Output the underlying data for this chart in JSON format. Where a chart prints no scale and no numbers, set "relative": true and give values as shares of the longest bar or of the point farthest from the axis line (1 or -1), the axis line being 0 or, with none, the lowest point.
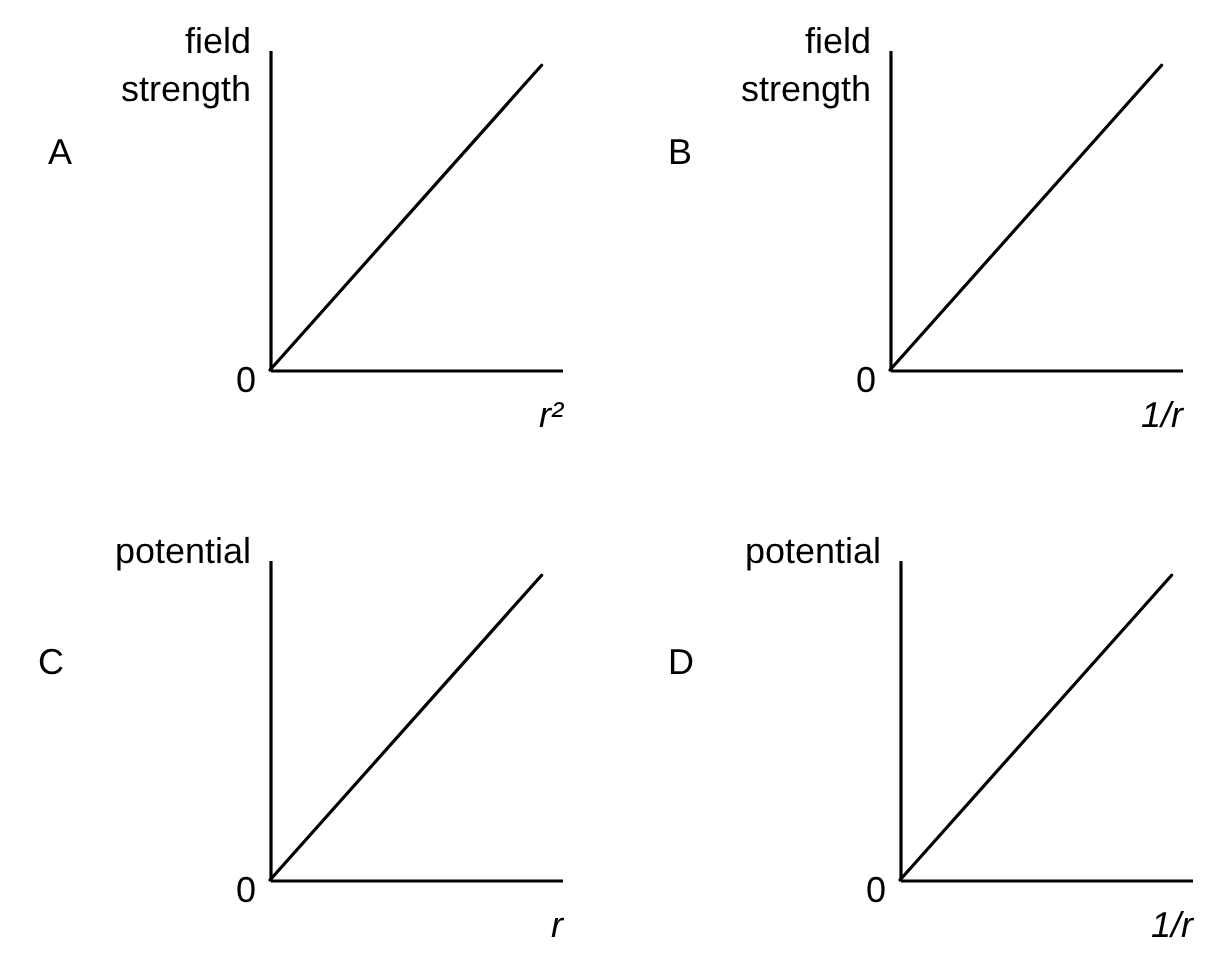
{
  "chart_data": [
    {
      "type": "line",
      "title": "A",
      "xlabel": "r²",
      "ylabel": "field strength",
      "categories": [
        null,
        null
      ],
      "values": [
        0,
        1
      ],
      "relative": true,
      "color": "#000000",
      "annotations": [
        "0"
      ]
    },
    {
      "type": "line",
      "title": "B",
      "xlabel": "1/r",
      "ylabel": "field strength",
      "categories": [
        null,
        null
      ],
      "values": [
        0,
        1
      ],
      "relative": true,
      "color": "#000000",
      "annotations": [
        "0"
      ]
    },
    {
      "type": "line",
      "title": "C",
      "xlabel": "r",
      "ylabel": "potential",
      "categories": [
        null,
        null
      ],
      "values": [
        0,
        1
      ],
      "relative": true,
      "color": "#000000",
      "annotations": [
        "0"
      ]
    },
    {
      "type": "line",
      "title": "D",
      "xlabel": "1/r",
      "ylabel": "potential",
      "categories": [
        null,
        null
      ],
      "values": [
        0,
        1
      ],
      "relative": true,
      "color": "#000000",
      "annotations": [
        "0"
      ]
    }
  ]
}
